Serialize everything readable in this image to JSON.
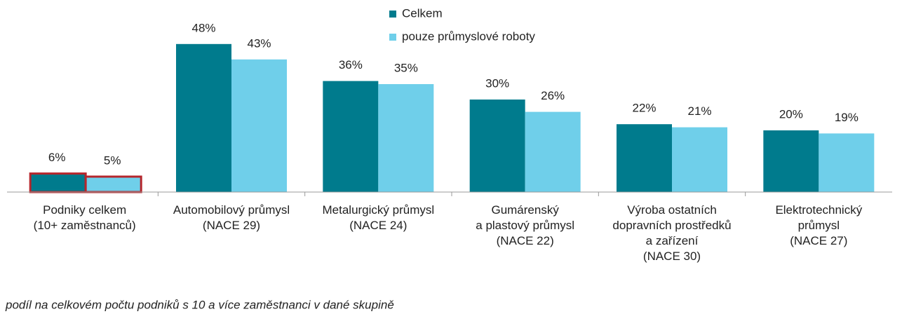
{
  "chart_data": {
    "type": "bar",
    "categories": [
      "Podniky celkem\n(10+ zaměstnanců)",
      "Automobilový průmysl\n(NACE 29)",
      "Metalurgický průmysl\n(NACE 24)",
      "Gumárenský\na plastový průmysl\n(NACE 22)",
      "Výroba ostatních\ndopravních prostředků\na zařízení\n(NACE 30)",
      "Elektrotechnický\nprůmysl\n(NACE 27)"
    ],
    "series": [
      {
        "name": "Celkem",
        "color": "#007b8d",
        "values": [
          6,
          48,
          36,
          30,
          22,
          20
        ],
        "value_labels": [
          "6%",
          "48%",
          "36%",
          "30%",
          "22%",
          "20%"
        ]
      },
      {
        "name": "pouze průmyslové roboty",
        "color": "#6fcfea",
        "values": [
          5,
          43,
          35,
          26,
          21,
          19
        ],
        "value_labels": [
          "5%",
          "43%",
          "35%",
          "26%",
          "21%",
          "19%"
        ]
      }
    ],
    "ylim": [
      0,
      50
    ],
    "highlight": {
      "category": 0,
      "color": "#b5262c"
    },
    "note": "podíl na celkovém počtu podniků s 10 a více zaměstnanci v dané skupině"
  }
}
